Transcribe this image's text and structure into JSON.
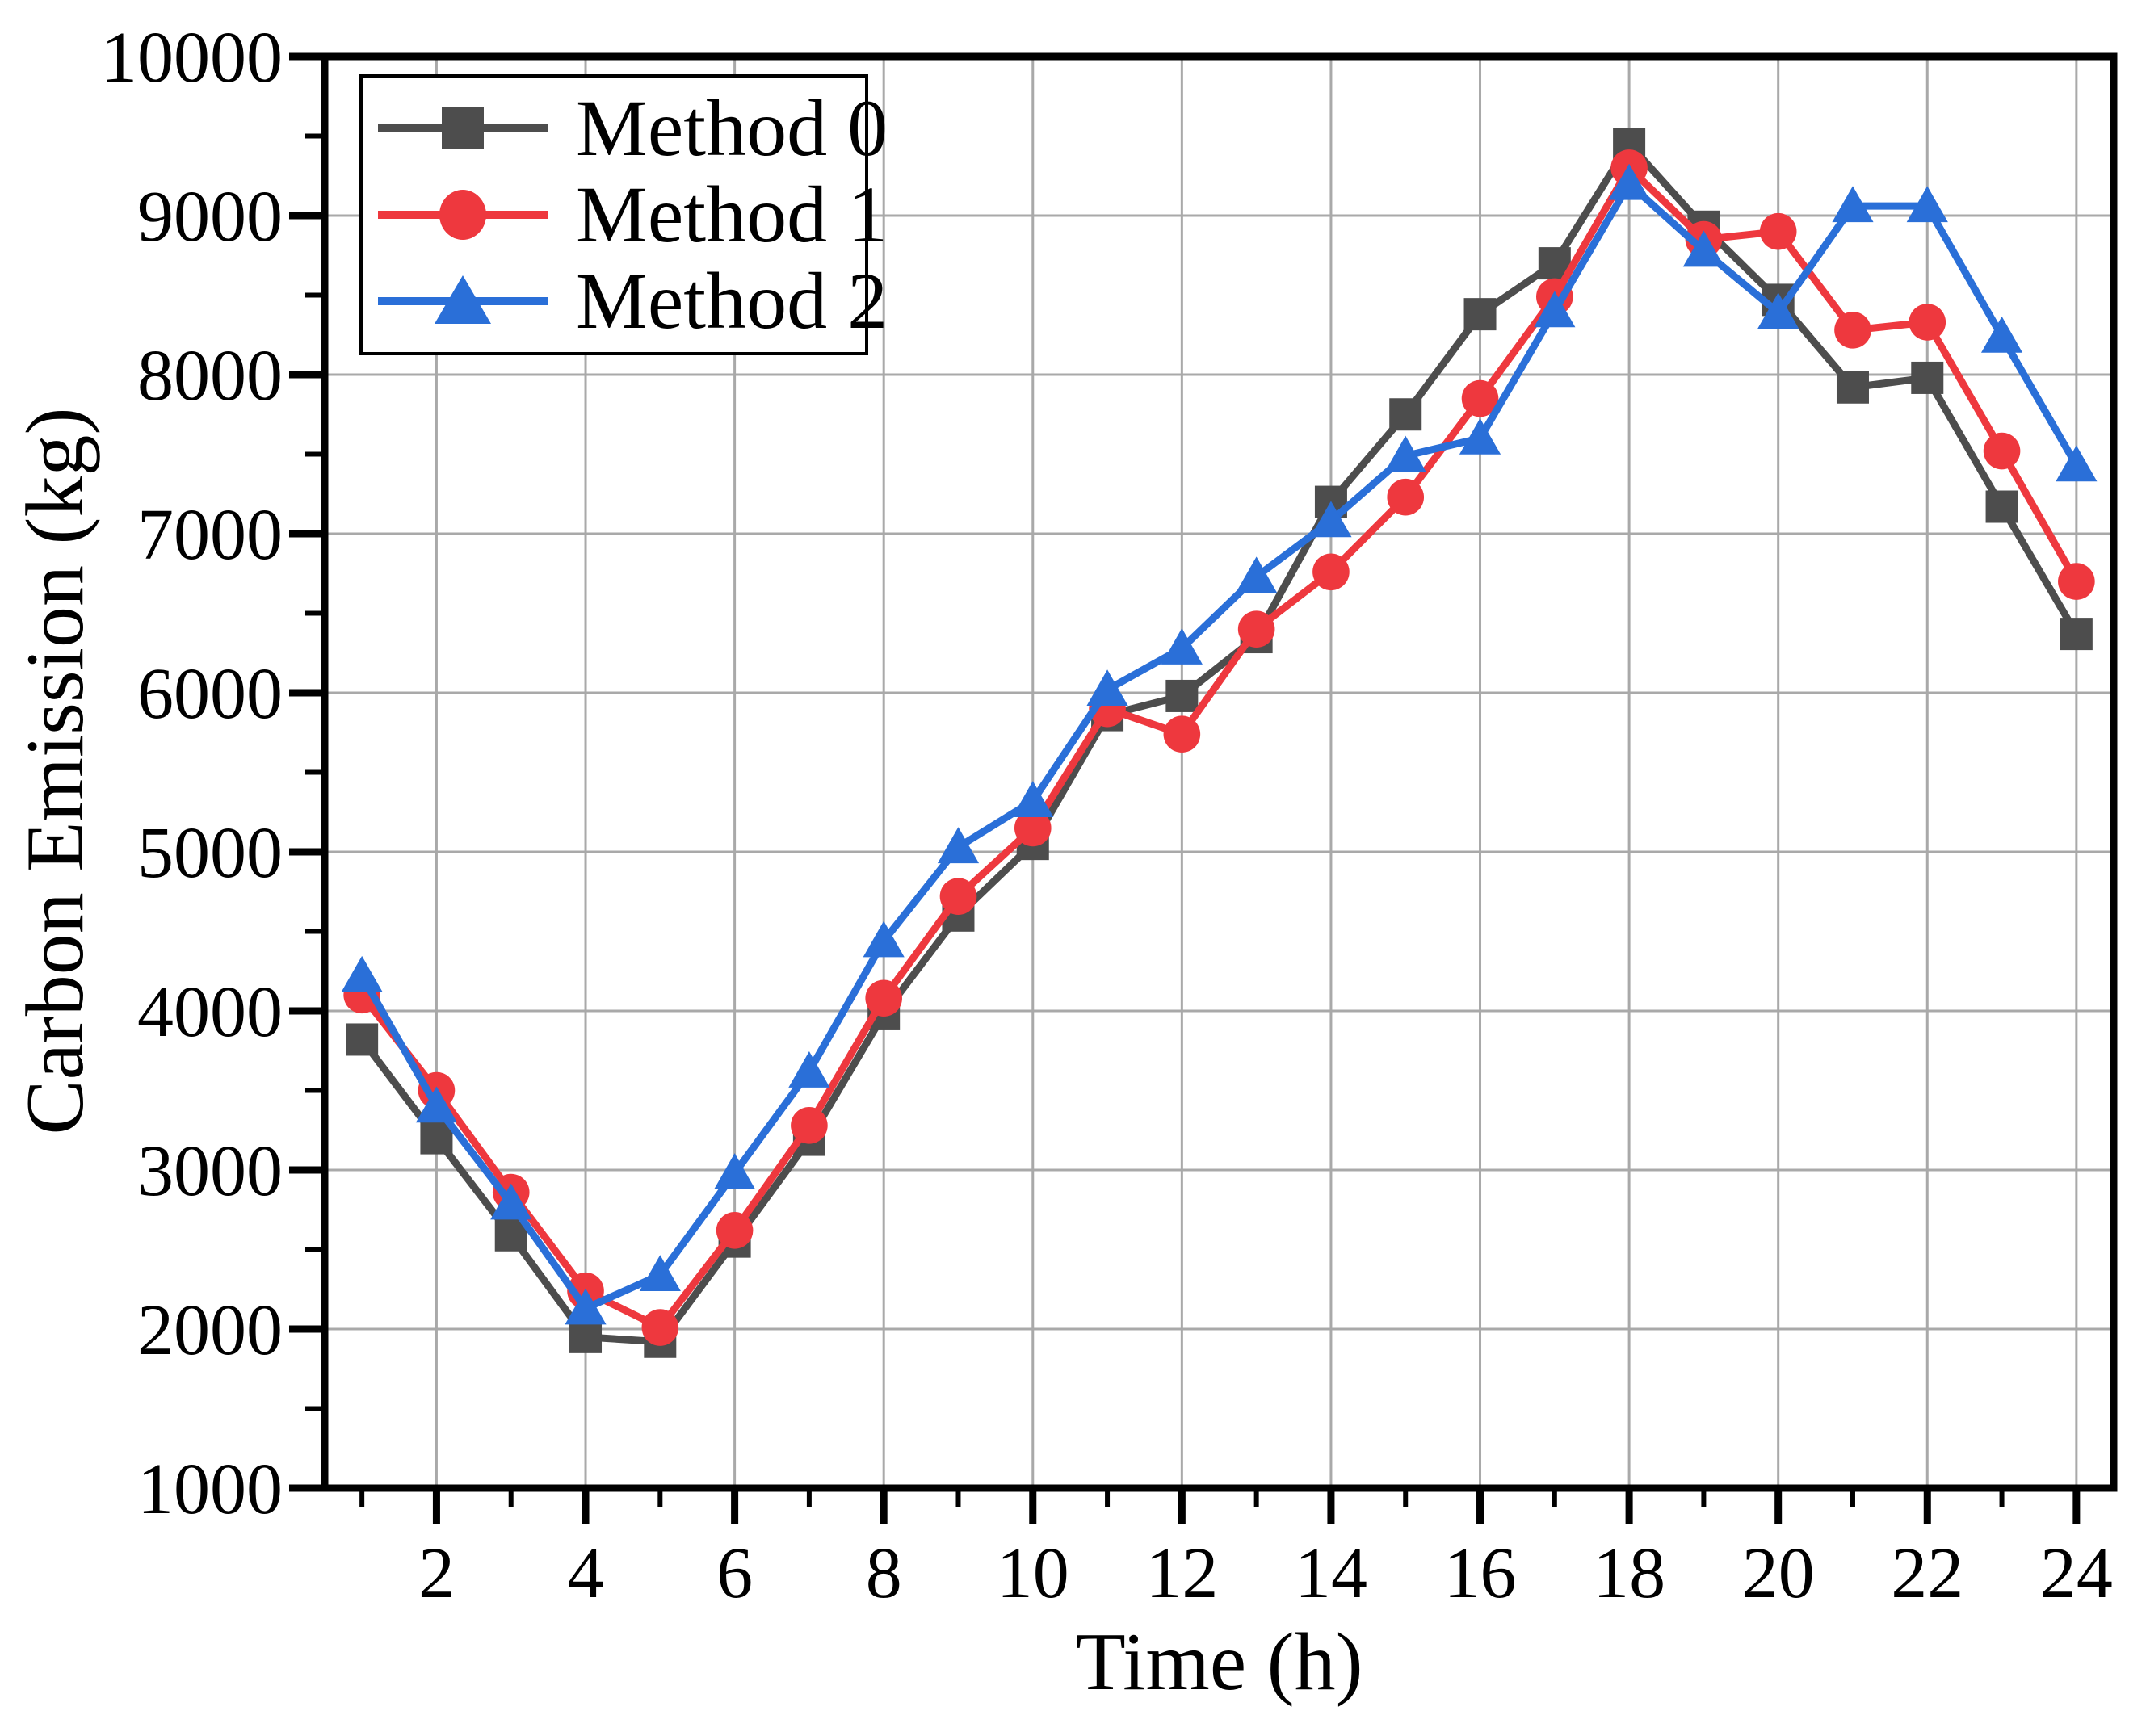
{
  "page": {
    "background": "#ffffff"
  },
  "chart_data": {
    "type": "line",
    "title": "",
    "xlabel": "Time (h)",
    "ylabel": "Carbon Emission (kg)",
    "x": [
      1,
      2,
      3,
      4,
      5,
      6,
      7,
      8,
      9,
      10,
      11,
      12,
      13,
      14,
      15,
      16,
      17,
      18,
      19,
      20,
      21,
      22,
      23,
      24
    ],
    "xlim": [
      0.5,
      24.5
    ],
    "ylim": [
      1000,
      10000
    ],
    "x_major_ticks": [
      2,
      4,
      6,
      8,
      10,
      12,
      14,
      16,
      18,
      20,
      22,
      24
    ],
    "x_minor_ticks": [
      1,
      3,
      5,
      7,
      9,
      11,
      13,
      15,
      17,
      19,
      21,
      23
    ],
    "y_major_ticks": [
      1000,
      2000,
      3000,
      4000,
      5000,
      6000,
      7000,
      8000,
      9000,
      10000
    ],
    "y_minor_step": 500,
    "grid": true,
    "grid_color": "#a9a9a9",
    "axis_color": "#000000",
    "legend_position": "top-left",
    "series": [
      {
        "name": "Method 0",
        "color": "#4d4d4d",
        "marker": "square",
        "values": [
          3820,
          3200,
          2590,
          1950,
          1920,
          2550,
          3190,
          3980,
          4600,
          5050,
          5860,
          5980,
          6350,
          7200,
          7750,
          8380,
          8700,
          9450,
          8930,
          8470,
          7920,
          7980,
          7170,
          6370
        ]
      },
      {
        "name": "Method 1",
        "color": "#ee383e",
        "marker": "circle",
        "values": [
          4100,
          3500,
          2860,
          2240,
          2010,
          2620,
          3280,
          4080,
          4720,
          5150,
          5900,
          5740,
          6400,
          6760,
          7230,
          7850,
          8490,
          9300,
          8850,
          8900,
          8280,
          8330,
          7520,
          6700
        ]
      },
      {
        "name": "Method 2",
        "color": "#2a6fd8",
        "marker": "triangle",
        "values": [
          4220,
          3400,
          2790,
          2130,
          2340,
          2980,
          3620,
          4440,
          5030,
          5320,
          6020,
          6280,
          6730,
          7080,
          7490,
          7600,
          8400,
          9200,
          8780,
          8390,
          9060,
          9060,
          8240,
          7430
        ]
      }
    ]
  }
}
